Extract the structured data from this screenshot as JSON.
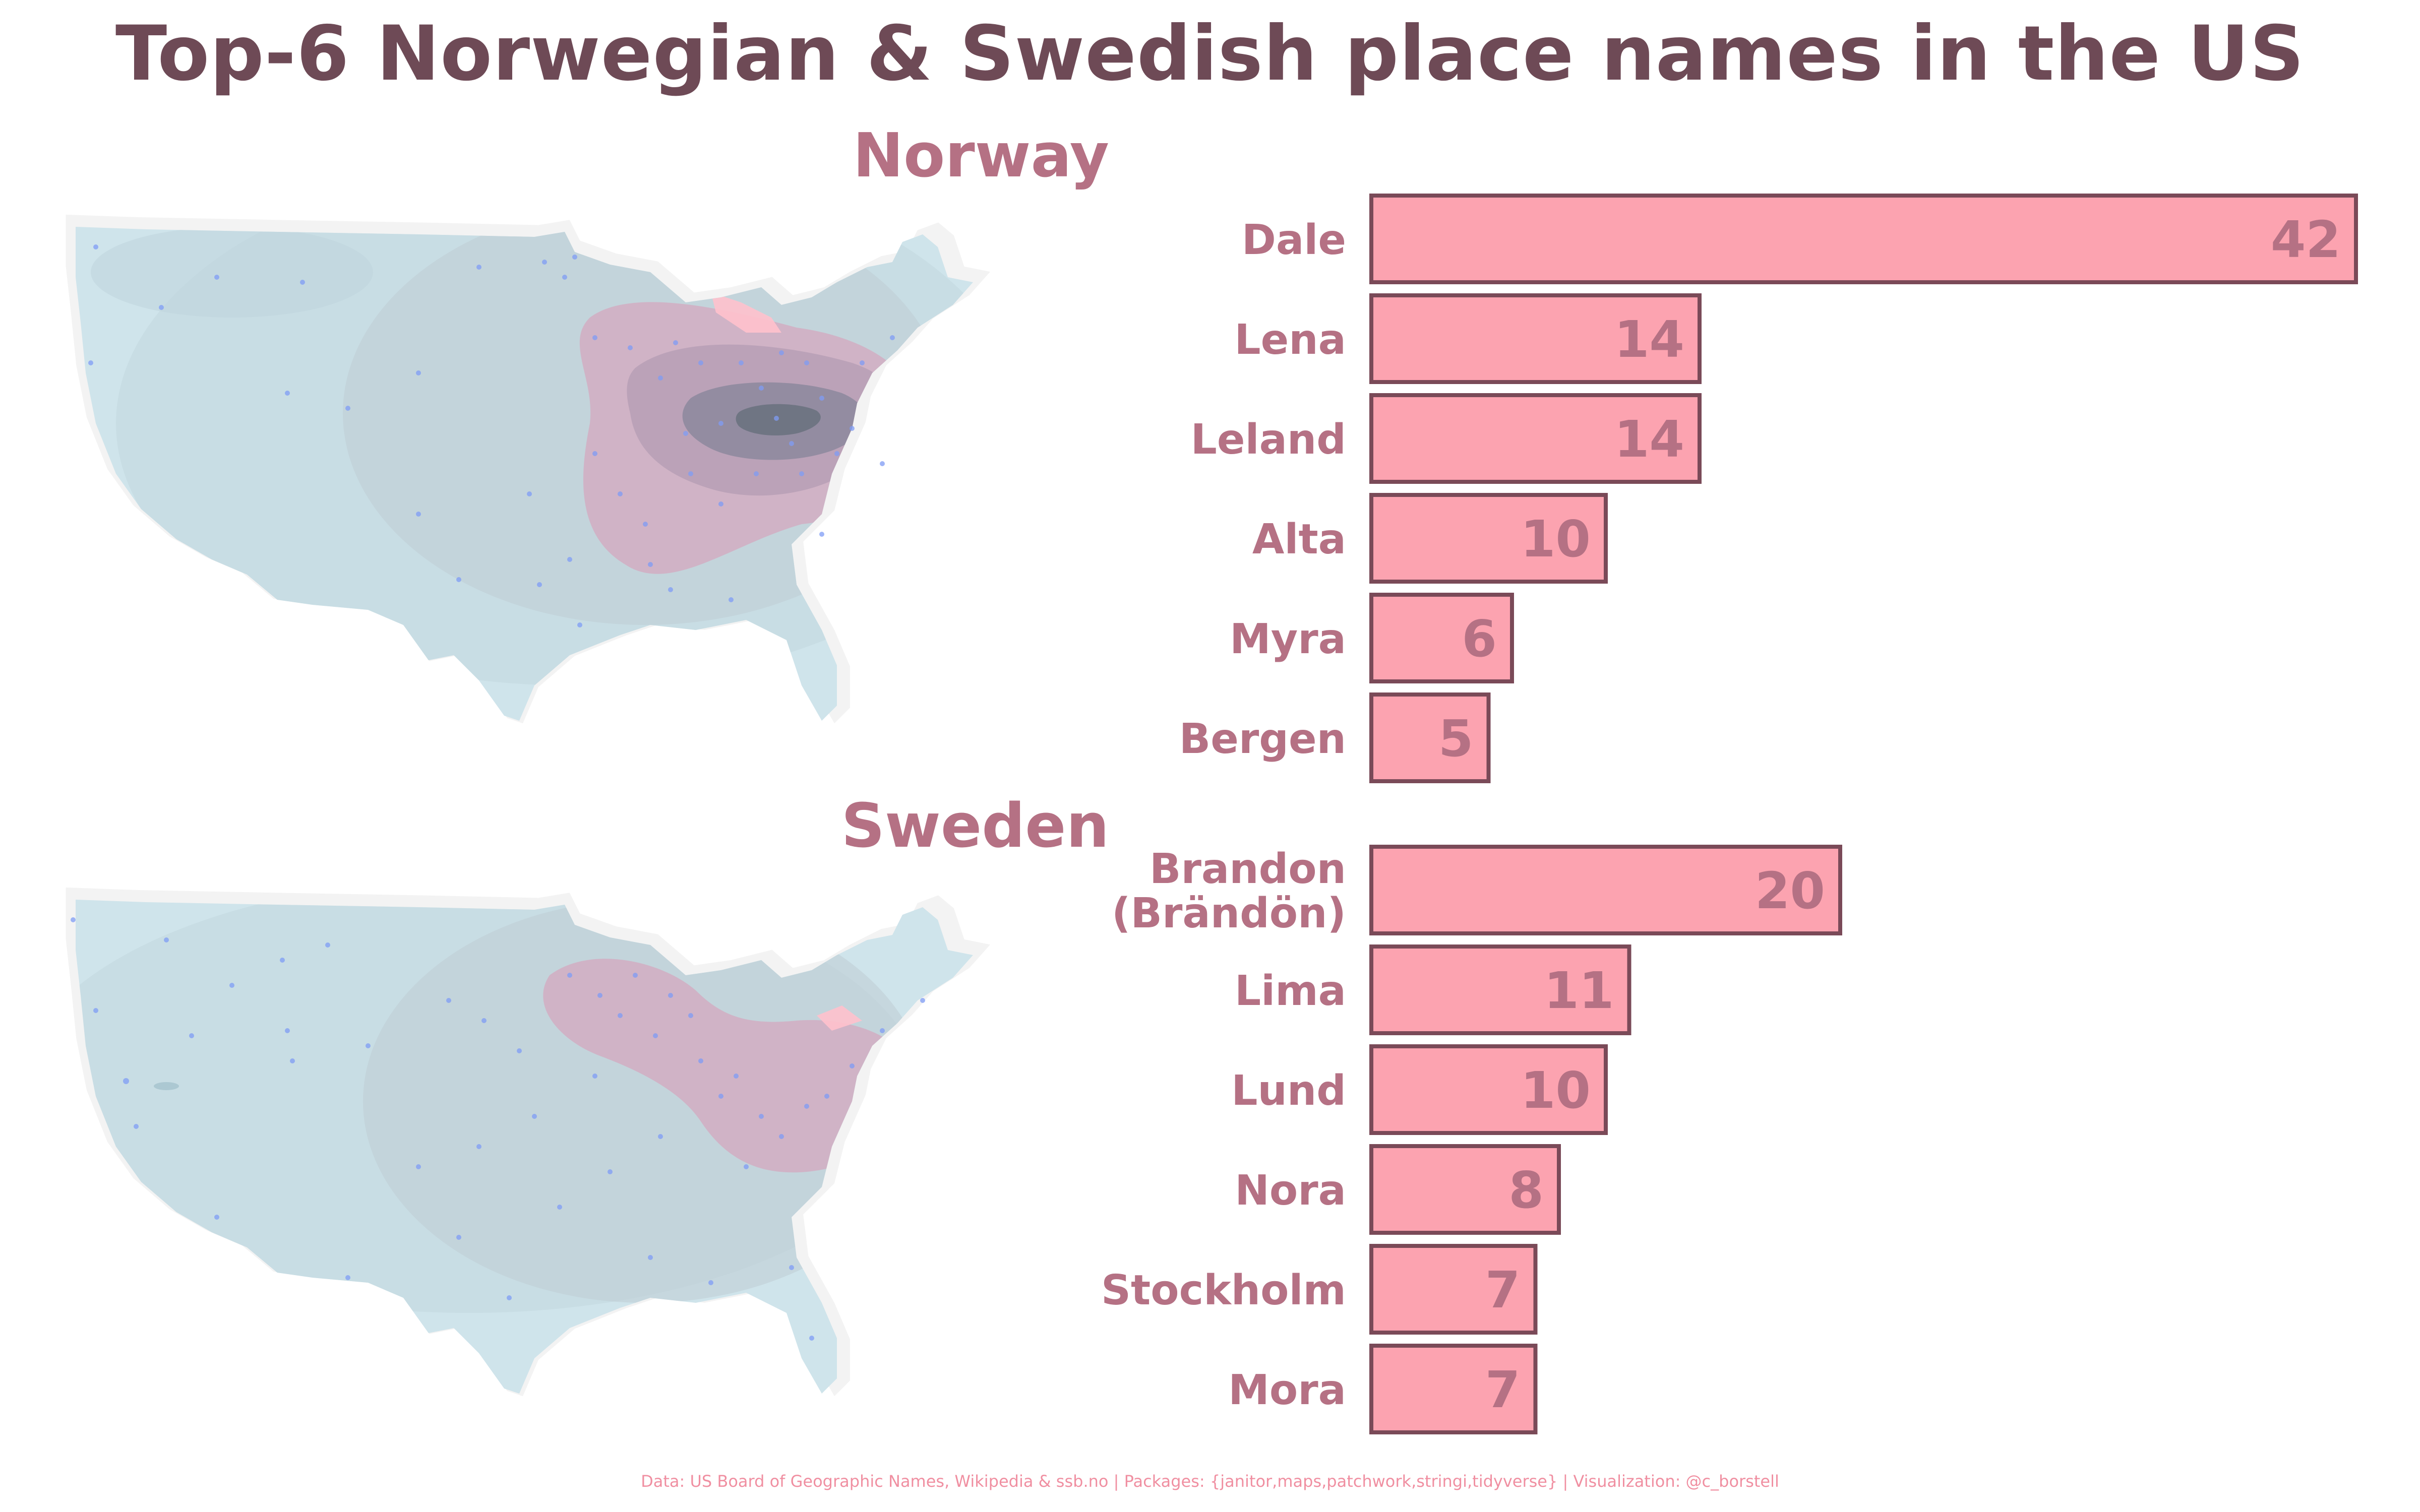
{
  "title": "Top-6 Norwegian & Swedish place names in the US",
  "footer": "Data: US Board of Geographic Names, Wikipedia & ssb.no | Packages: {janitor,maps,patchwork,stringi,tidyverse} | Visualization: @c_borstell",
  "colors": {
    "title": "#6e4a56",
    "label": "#b57184",
    "bar_fill": "#fca3b0",
    "bar_stroke": "#7a4a58",
    "value_text": "#b57184",
    "map_land": "#cde3ea",
    "dots": "#7f9cf5"
  },
  "chart_data": [
    {
      "type": "bar",
      "title": "Norway",
      "orientation": "horizontal",
      "categories": [
        "Dale",
        "Lena",
        "Leland",
        "Alta",
        "Myra",
        "Bergen"
      ],
      "values": [
        42,
        14,
        14,
        10,
        6,
        5
      ],
      "xlabel": "",
      "ylabel": ""
    },
    {
      "type": "bar",
      "title": "Sweden",
      "orientation": "horizontal",
      "categories": [
        "Brandon\n(Brändön)",
        "Lima",
        "Lund",
        "Nora",
        "Stockholm",
        "Mora"
      ],
      "values": [
        20,
        11,
        10,
        8,
        7,
        7
      ],
      "xlabel": "",
      "ylabel": ""
    }
  ]
}
